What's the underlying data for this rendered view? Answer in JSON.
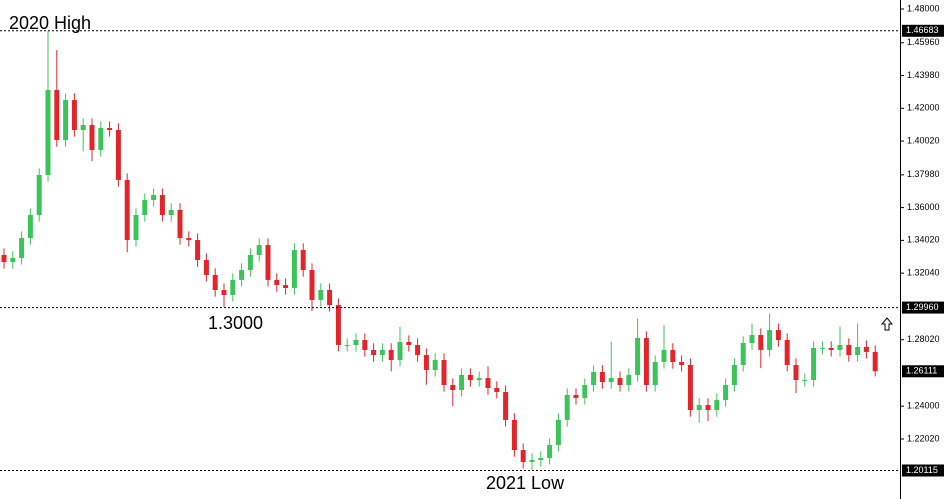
{
  "chart_data": {
    "type": "candlestick",
    "up_color": "#3cc45a",
    "down_color": "#e3242b",
    "ylim": [
      1.18393,
      1.48544
    ],
    "yticks": [
      {
        "value": 1.48,
        "label": "1.48000"
      },
      {
        "value": 1.4596,
        "label": "1.45960"
      },
      {
        "value": 1.4398,
        "label": "1.43980"
      },
      {
        "value": 1.42,
        "label": "1.42000"
      },
      {
        "value": 1.4002,
        "label": "1.40020"
      },
      {
        "value": 1.3798,
        "label": "1.37980"
      },
      {
        "value": 1.36,
        "label": "1.36000"
      },
      {
        "value": 1.3402,
        "label": "1.34020"
      },
      {
        "value": 1.3204,
        "label": "1.32040"
      },
      {
        "value": 1.2802,
        "label": "1.28020"
      },
      {
        "value": 1.24,
        "label": "1.24000"
      },
      {
        "value": 1.2202,
        "label": "1.22020"
      }
    ],
    "levels": [
      1.46683,
      {
        "value": 1.2996,
        "label": "1.29960"
      },
      1.20115
    ],
    "current_price": 1.26111,
    "annotations": [
      "2020 High",
      "1.3000",
      "2021 Low"
    ],
    "open": [
      1.3314,
      1.3271,
      1.3296,
      1.3416,
      1.3555,
      1.3797,
      1.4311,
      1.4008,
      1.425,
      1.4069,
      1.4099,
      1.3948,
      1.4081,
      1.4069,
      1.3767,
      1.3404,
      1.3555,
      1.3646,
      1.3676,
      1.3555,
      1.3586,
      1.3416,
      1.3404,
      1.3283,
      1.3193,
      1.3102,
      1.3072,
      1.3163,
      1.3223,
      1.3314,
      1.3374,
      1.3163,
      1.3132,
      1.3114,
      1.3344,
      1.3223,
      1.3042,
      1.3102,
      1.3011,
      1.277,
      1.277,
      1.28,
      1.274,
      1.2709,
      1.274,
      1.2679,
      1.2788,
      1.277,
      1.2709,
      1.2619,
      1.2679,
      1.2528,
      1.2498,
      1.2589,
      1.2558,
      1.257,
      1.251,
      1.2486,
      1.2317,
      1.2135,
      1.2063,
      1.2075,
      1.2087,
      1.2166,
      1.2317,
      1.2468,
      1.245,
      1.2528,
      1.2607,
      1.2546,
      1.257,
      1.2528,
      1.2589,
      1.2812,
      1.2528,
      1.2667,
      1.274,
      1.2667,
      1.2649,
      1.2377,
      1.2407,
      1.2377,
      1.2437,
      1.2528,
      1.2649,
      1.2782,
      1.283,
      1.274,
      1.286,
      1.28,
      1.2649,
      1.2558,
      1.2558,
      1.2752,
      1.2752,
      1.274,
      1.277,
      1.2709,
      1.2758,
      1.2728
    ],
    "high": [
      1.3354,
      1.3336,
      1.3456,
      1.3595,
      1.3837,
      1.46683,
      1.4552,
      1.429,
      1.429,
      1.4139,
      1.4139,
      1.4121,
      1.4121,
      1.4109,
      1.3807,
      1.3595,
      1.3686,
      1.3716,
      1.3716,
      1.3626,
      1.3626,
      1.3456,
      1.3444,
      1.3323,
      1.3233,
      1.3142,
      1.3203,
      1.3263,
      1.3354,
      1.3414,
      1.3414,
      1.3203,
      1.3172,
      1.3384,
      1.3384,
      1.3263,
      1.3142,
      1.3142,
      1.3051,
      1.281,
      1.284,
      1.284,
      1.278,
      1.278,
      1.278,
      1.288,
      1.2828,
      1.281,
      1.2749,
      1.2719,
      1.2719,
      1.2568,
      1.2629,
      1.2629,
      1.261,
      1.264,
      1.255,
      1.2526,
      1.2357,
      1.2175,
      1.2115,
      1.2127,
      1.2206,
      1.2357,
      1.2508,
      1.2508,
      1.2568,
      1.2647,
      1.2647,
      1.279,
      1.261,
      1.2629,
      1.293,
      1.2852,
      1.2707,
      1.289,
      1.278,
      1.2707,
      1.2689,
      1.2447,
      1.2447,
      1.2477,
      1.2568,
      1.2689,
      1.2822,
      1.29,
      1.287,
      1.296,
      1.29,
      1.284,
      1.2689,
      1.2598,
      1.2792,
      1.2792,
      1.2792,
      1.288,
      1.281,
      1.29,
      1.2798,
      1.2768
    ],
    "low": [
      1.3231,
      1.3231,
      1.3256,
      1.3376,
      1.3515,
      1.3757,
      1.3968,
      1.3968,
      1.4029,
      1.394,
      1.388,
      1.3908,
      1.4029,
      1.3727,
      1.333,
      1.3364,
      1.3515,
      1.3606,
      1.3515,
      1.3515,
      1.3376,
      1.3364,
      1.3243,
      1.3153,
      1.3062,
      1.3,
      1.3032,
      1.3123,
      1.3183,
      1.3274,
      1.3123,
      1.3092,
      1.3074,
      1.3074,
      1.3183,
      1.2975,
      1.3002,
      1.2971,
      1.273,
      1.273,
      1.273,
      1.27,
      1.2669,
      1.2669,
      1.261,
      1.2639,
      1.273,
      1.2669,
      1.253,
      1.2579,
      1.2488,
      1.24,
      1.2458,
      1.2518,
      1.2518,
      1.247,
      1.2446,
      1.2277,
      1.2095,
      1.2023,
      1.20115,
      1.2035,
      1.2047,
      1.2126,
      1.2277,
      1.241,
      1.241,
      1.2488,
      1.2506,
      1.2506,
      1.2488,
      1.2488,
      1.2549,
      1.2488,
      1.2488,
      1.2627,
      1.2627,
      1.2609,
      1.2337,
      1.23,
      1.231,
      1.2337,
      1.2397,
      1.2488,
      1.2609,
      1.2742,
      1.263,
      1.27,
      1.276,
      1.2609,
      1.248,
      1.2518,
      1.2518,
      1.2712,
      1.27,
      1.27,
      1.2669,
      1.2669,
      1.2688,
      1.258
    ],
    "close": [
      1.3271,
      1.3296,
      1.3416,
      1.3555,
      1.3797,
      1.4311,
      1.4008,
      1.425,
      1.4069,
      1.4099,
      1.3948,
      1.4081,
      1.4069,
      1.3767,
      1.3404,
      1.3555,
      1.3646,
      1.3676,
      1.3555,
      1.3586,
      1.3416,
      1.3404,
      1.3283,
      1.3193,
      1.3102,
      1.3072,
      1.3163,
      1.3223,
      1.3314,
      1.3374,
      1.3163,
      1.3132,
      1.3114,
      1.3344,
      1.3223,
      1.3042,
      1.3102,
      1.3011,
      1.277,
      1.277,
      1.28,
      1.274,
      1.2709,
      1.274,
      1.2679,
      1.2788,
      1.277,
      1.2709,
      1.2619,
      1.2679,
      1.2528,
      1.2498,
      1.2589,
      1.2558,
      1.257,
      1.251,
      1.2486,
      1.2317,
      1.2135,
      1.2063,
      1.2075,
      1.2087,
      1.2166,
      1.2317,
      1.2468,
      1.245,
      1.2528,
      1.2607,
      1.2546,
      1.257,
      1.2528,
      1.2589,
      1.2812,
      1.2528,
      1.2667,
      1.274,
      1.2667,
      1.2649,
      1.2377,
      1.2407,
      1.2377,
      1.2437,
      1.2528,
      1.2649,
      1.2782,
      1.283,
      1.274,
      1.286,
      1.28,
      1.2649,
      1.2558,
      1.2558,
      1.2752,
      1.2752,
      1.274,
      1.277,
      1.2709,
      1.2758,
      1.2728,
      1.26111
    ]
  }
}
